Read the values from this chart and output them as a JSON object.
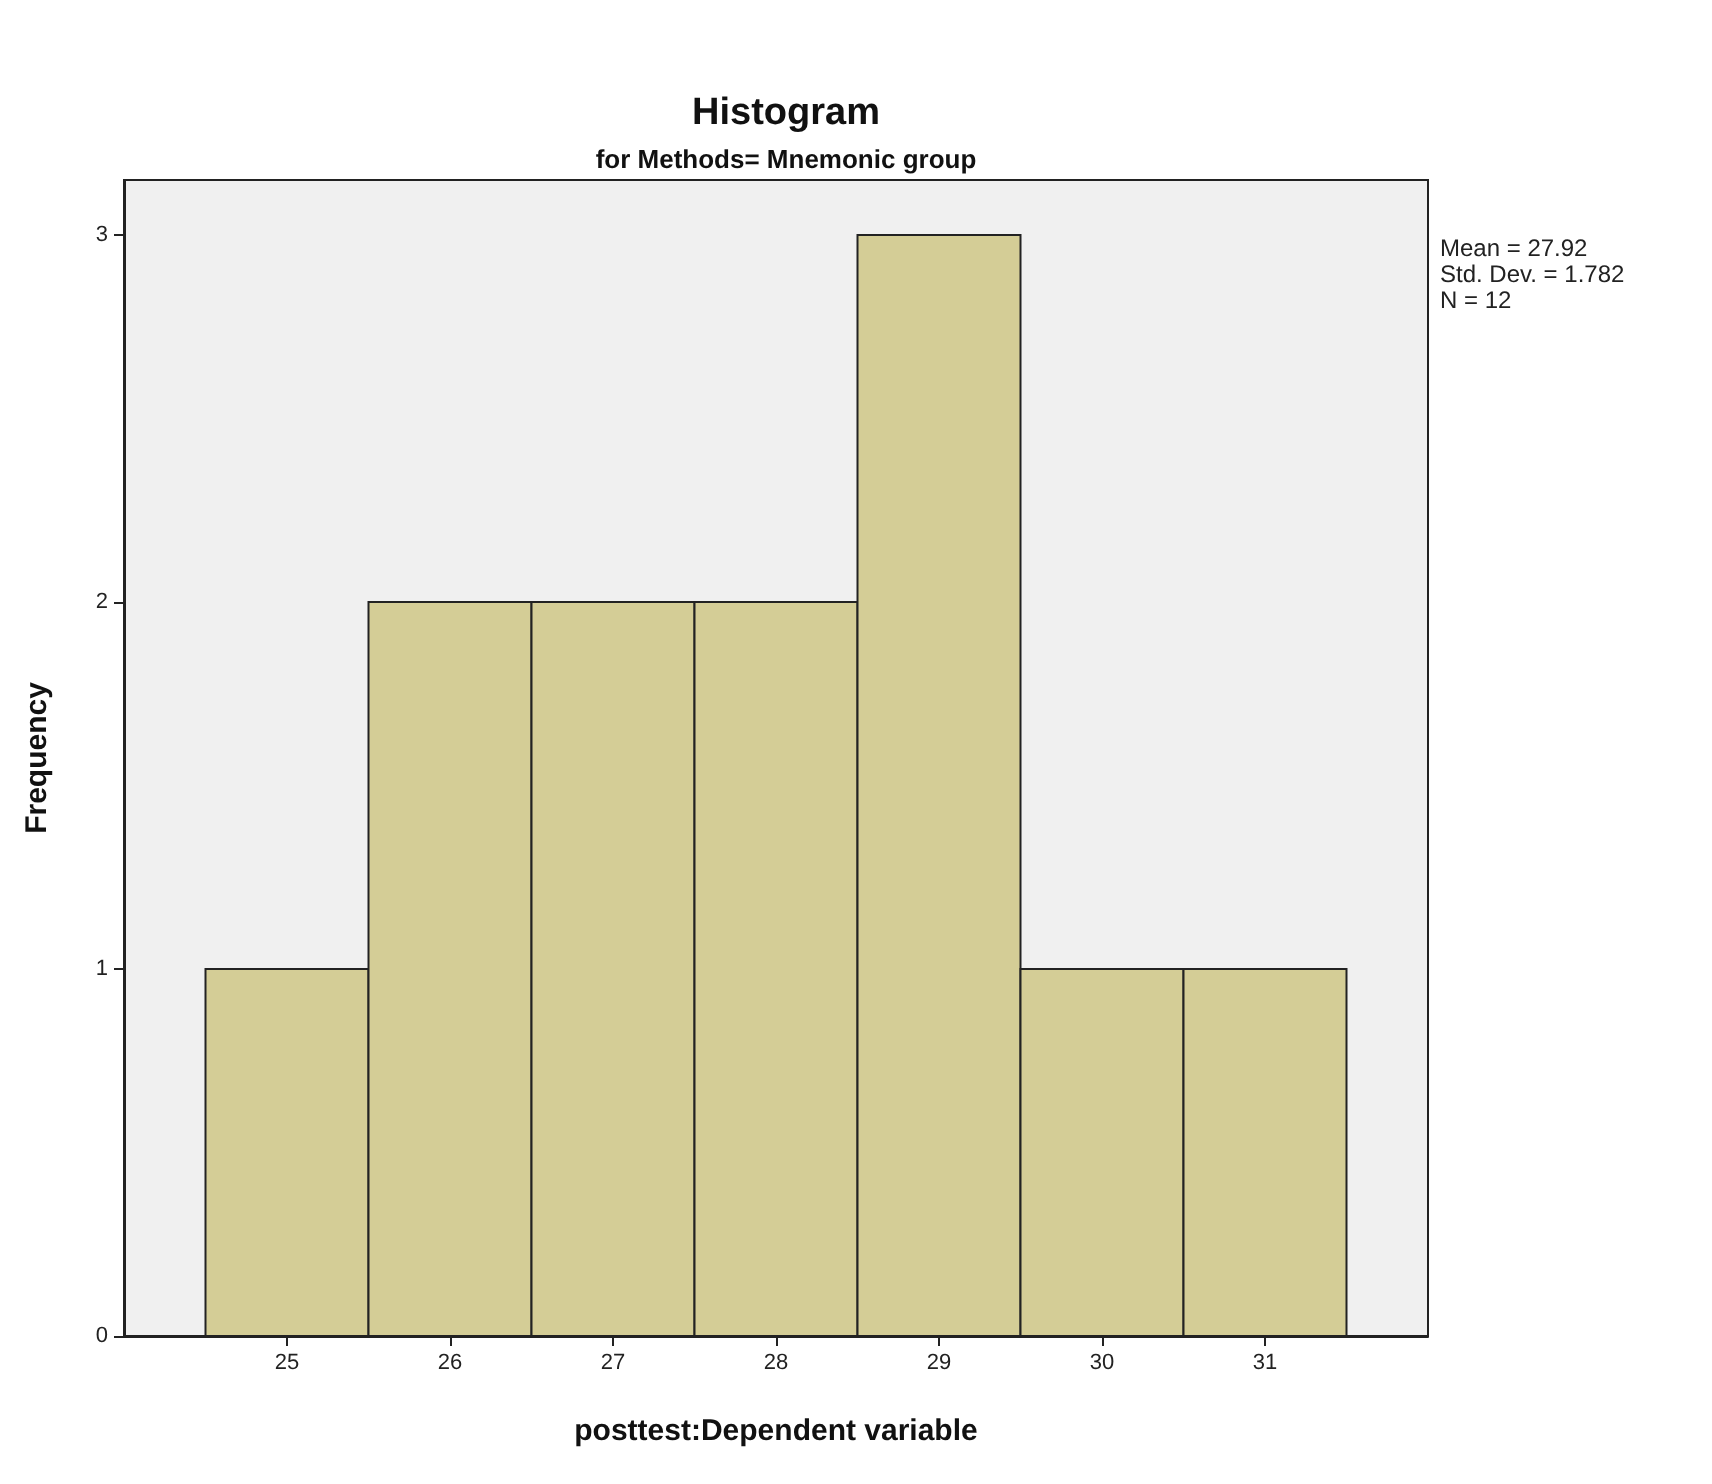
{
  "chart_data": {
    "type": "histogram",
    "title": "Histogram",
    "subtitle": "for Methods= Mnemonic group",
    "xlabel": "posttest:Dependent variable",
    "ylabel": "Frequency",
    "bins": [
      24.5,
      25.5,
      26.5,
      27.5,
      28.5,
      29.5,
      30.5,
      31.5
    ],
    "values": [
      1,
      2,
      2,
      2,
      3,
      1,
      1
    ],
    "color": "#d4cd96",
    "xlim": [
      24,
      32
    ],
    "xticks": [
      25,
      26,
      27,
      28,
      29,
      30,
      31
    ],
    "ylim": [
      0,
      3.15
    ],
    "yticks": [
      0,
      1,
      2,
      3
    ],
    "grid": false,
    "annotations": [
      "Mean = 27.92",
      "Std. Dev. = 1.782",
      "N = 12"
    ]
  }
}
